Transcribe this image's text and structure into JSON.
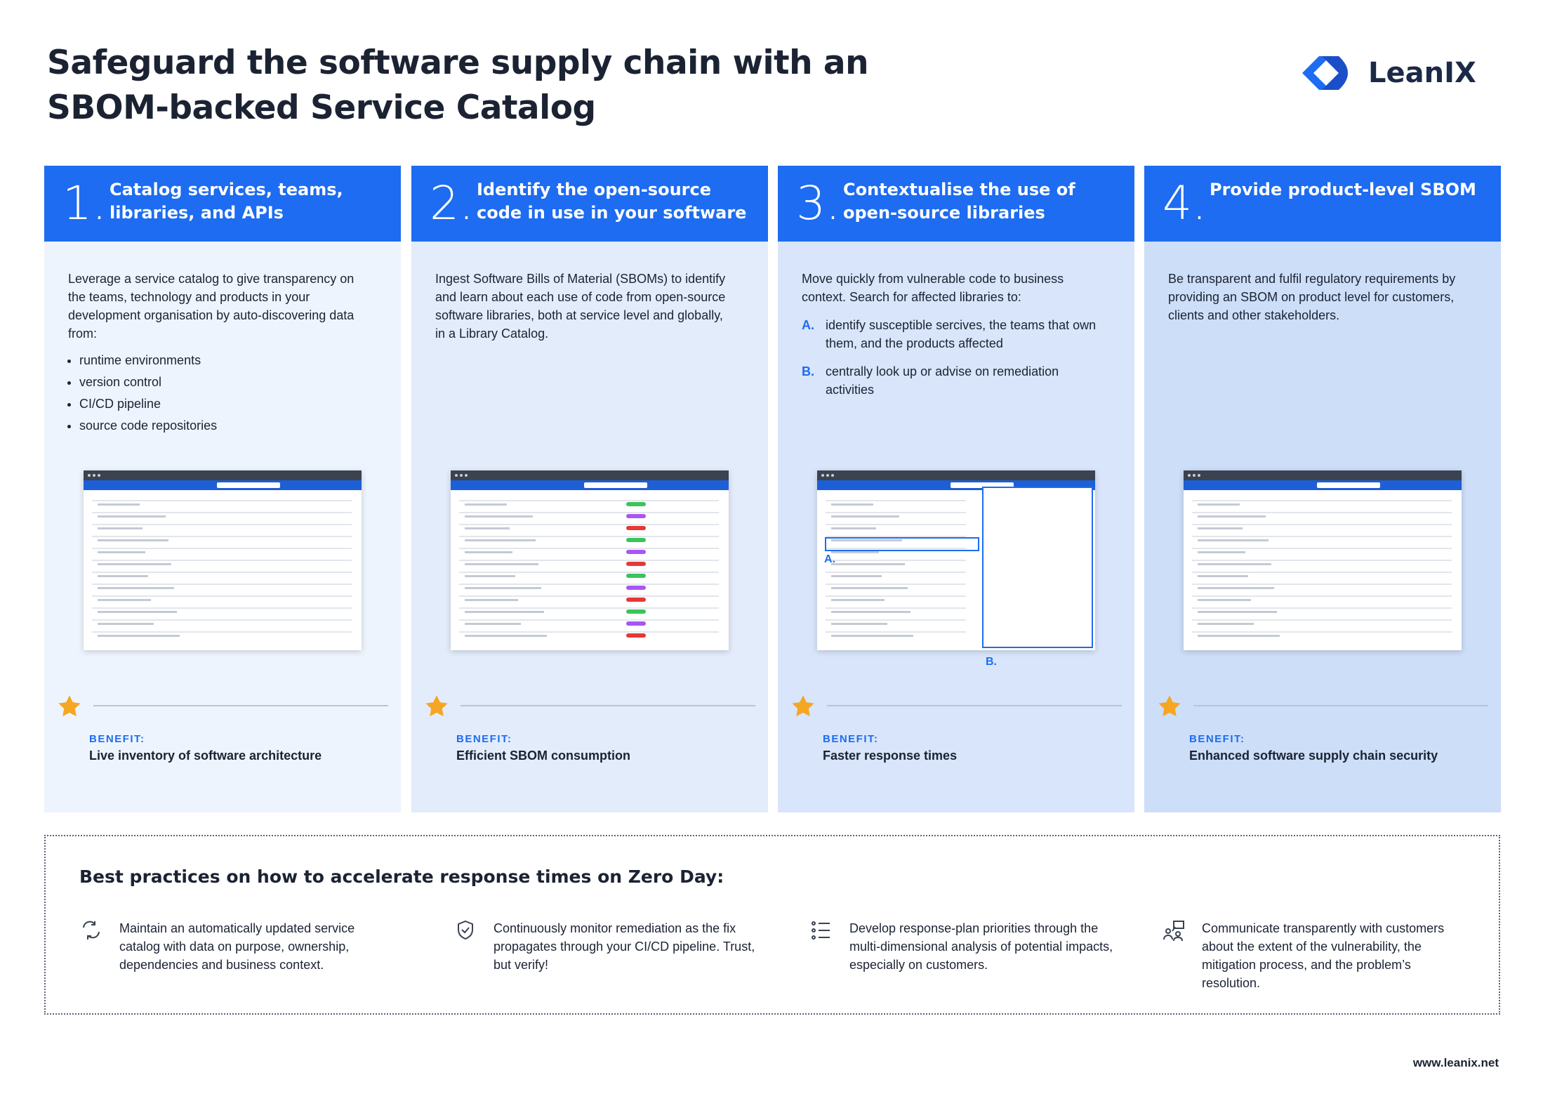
{
  "header": {
    "title_lines": [
      "Safeguard the software supply chain with an",
      "SBOM-backed Service Catalog"
    ],
    "logo": "LeanIX"
  },
  "columns": [
    {
      "number": "1.",
      "title": "Catalog services, teams, libraries, and APIs",
      "body": "Leverage a service catalog to give transparency on the teams, technology and products in your development organisation by auto-discovering data from:",
      "bullets": [
        "runtime environments",
        "version control",
        "CI/CD pipeline",
        "source code repositories"
      ],
      "benefit_label": "BENEFIT:",
      "benefit": "Live inventory of software architecture"
    },
    {
      "number": "2.",
      "title": "Identify the open-source code in use in your software",
      "body": "Ingest Software Bills of Material (SBOMs) to identify and learn about each use of code from open-source software libraries, both at service level and globally, in a Library Catalog.",
      "benefit_label": "BENEFIT:",
      "benefit": "Efficient SBOM consumption"
    },
    {
      "number": "3.",
      "title": "Contextualise the use of open-source libraries",
      "body": "Move quickly from vulnerable code to business context. Search for affected libraries to:",
      "list": [
        {
          "marker": "A.",
          "text": "identify susceptible sercives, the teams that own them, and the products affected"
        },
        {
          "marker": "B.",
          "text": "centrally look up or advise on remediation activities"
        }
      ],
      "screenshot_labels": [
        "A.",
        "B."
      ],
      "benefit_label": "BENEFIT:",
      "benefit": "Faster response times"
    },
    {
      "number": "4.",
      "title": "Provide product-level SBOM",
      "body": "Be transparent and fulfil regulatory requirements by providing an SBOM on product level for customers, clients and other stakeholders.",
      "benefit_label": "BENEFIT:",
      "benefit": "Enhanced software supply chain security"
    }
  ],
  "best_practices": {
    "title": "Best practices on how to accelerate response times on Zero Day:",
    "items": [
      "Maintain an automatically updated service catalog with data on purpose, ownership, dependencies and business context.",
      "Continuously monitor remediation as the fix propagates through your CI/CD pipeline. Trust, but verify!",
      "Develop response-plan priorities through the multi-dimensional analysis of potential impacts, especially on customers.",
      "Communicate transparently with customers about the extent of the vulnerability, the mitigation process, and the problem’s resolution."
    ]
  },
  "footer": {
    "url": "www.leanix.net"
  }
}
